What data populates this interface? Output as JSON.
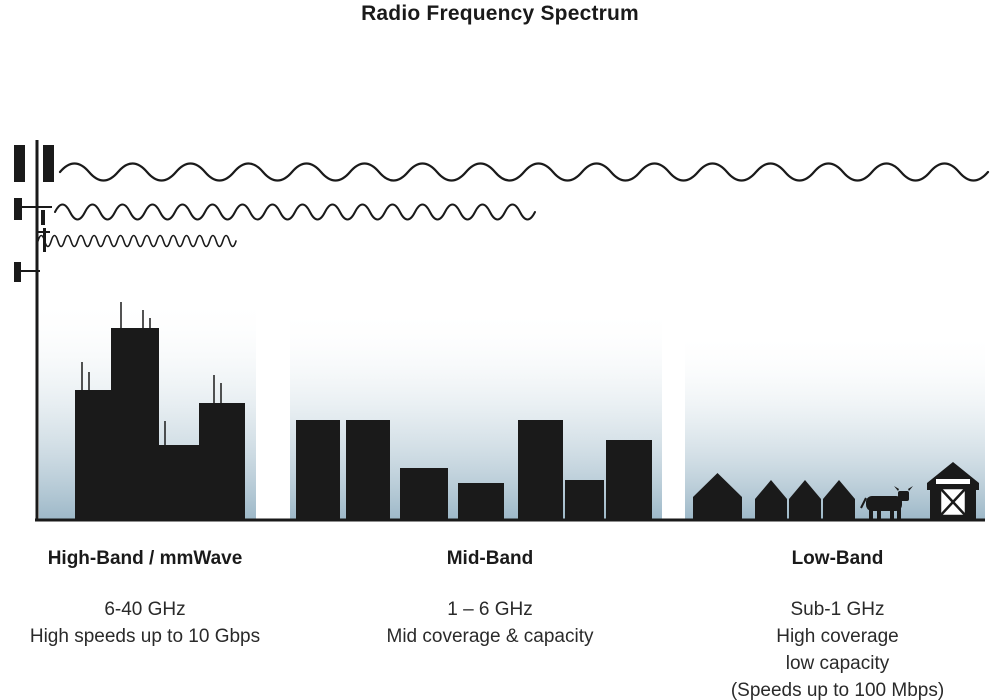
{
  "title": "Radio Frequency Spectrum",
  "bands": [
    {
      "name": "High-Band / mmWave",
      "lines": [
        "6-40 GHz",
        "High speeds up to 10 Gbps"
      ]
    },
    {
      "name": "Mid-Band",
      "lines": [
        "1 – 6 GHz",
        "Mid coverage & capacity"
      ]
    },
    {
      "name": "Low-Band",
      "lines": [
        "Sub-1 GHz",
        "High coverage",
        "low capacity",
        "(Speeds up to 100 Mbps)"
      ]
    }
  ],
  "icons": [
    "cell-tower-icon",
    "long-wavelength-wave-icon",
    "medium-wavelength-wave-icon",
    "short-wavelength-wave-icon",
    "skyscraper-silhouettes",
    "midrise-building-silhouettes",
    "house-silhouettes",
    "cow-icon",
    "barn-icon"
  ],
  "colors": {
    "silhouette": "#1a1a1a",
    "gradient_top": "#ffffff",
    "gradient_bottom": "#9db8c8",
    "text": "#1a1a1a"
  }
}
